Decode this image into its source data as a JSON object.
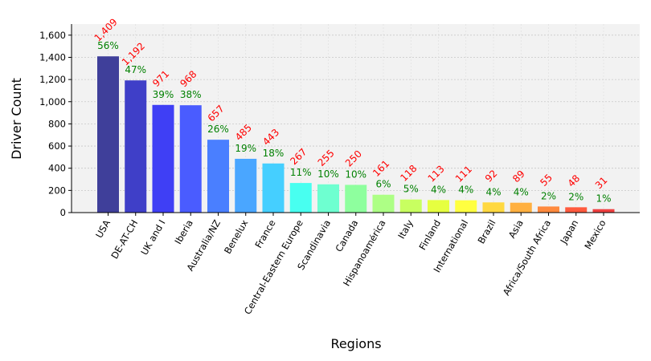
{
  "chart_data": {
    "type": "bar",
    "title": "",
    "xlabel": "Regions",
    "ylabel": "Driver Count",
    "ylim": [
      0,
      1700
    ],
    "yticks": [
      0,
      200,
      400,
      600,
      800,
      1000,
      1200,
      1400,
      1600
    ],
    "ytick_labels": [
      "0",
      "200",
      "400",
      "600",
      "800",
      "1,000",
      "1,200",
      "1,400",
      "1,600"
    ],
    "grid": true,
    "categories": [
      "USA",
      "DE-AT-CH",
      "UK and I",
      "Iberia",
      "Australia/NZ",
      "Benelux",
      "France",
      "Central-Eastern Europe",
      "Scandinavia",
      "Canada",
      "Hispanoamérica",
      "Italy",
      "Finland",
      "International",
      "Brazil",
      "Asia",
      "Africa/South Africa",
      "Japan",
      "Mexico"
    ],
    "values": [
      1409,
      1192,
      971,
      968,
      657,
      485,
      443,
      267,
      255,
      250,
      161,
      118,
      113,
      111,
      92,
      89,
      55,
      48,
      31
    ],
    "value_labels": [
      "1,409",
      "1,192",
      "971",
      "968",
      "657",
      "485",
      "443",
      "267",
      "255",
      "250",
      "161",
      "118",
      "113",
      "111",
      "92",
      "89",
      "55",
      "48",
      "31"
    ],
    "percent_labels": [
      "56%",
      "47%",
      "39%",
      "38%",
      "26%",
      "19%",
      "18%",
      "11%",
      "10%",
      "10%",
      "6%",
      "5%",
      "4%",
      "4%",
      "4%",
      "4%",
      "2%",
      "2%",
      "1%"
    ],
    "colors": [
      "#3f3f9a",
      "#3f3fc8",
      "#3f3ff5",
      "#4a5cff",
      "#4a7fff",
      "#4aa6ff",
      "#45cfff",
      "#48fff0",
      "#6effd0",
      "#8eff9e",
      "#adff85",
      "#c8ff60",
      "#e6ff40",
      "#ffff40",
      "#ffd840",
      "#ffb040",
      "#ff8a3e",
      "#ff5a3e",
      "#ef4040"
    ],
    "value_label_color": "#ff0000",
    "percent_label_color": "#008000",
    "plot_background": "#f2f2f2"
  }
}
